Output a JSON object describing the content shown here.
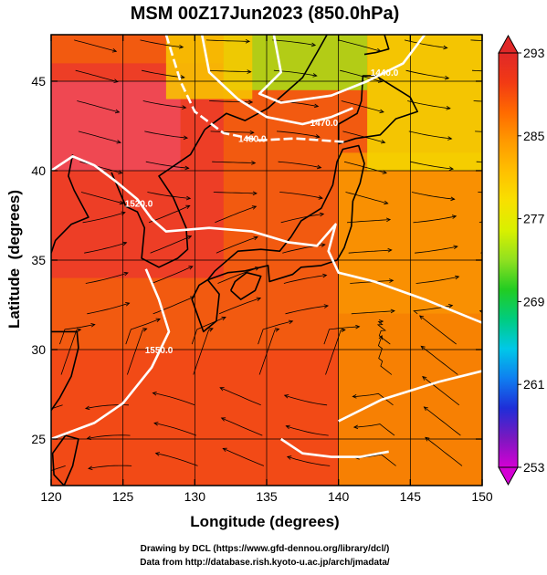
{
  "chart_data": {
    "type": "heatmap",
    "title": "MSM 00Z17Jun2023 (850.0hPa)",
    "xlabel": "Longitude (degrees)",
    "ylabel": "Latitude  (degrees)",
    "xlim": [
      120,
      150
    ],
    "ylim": [
      22.4,
      47.6
    ],
    "x_ticks": [
      120,
      125,
      130,
      135,
      140,
      145,
      150
    ],
    "y_ticks": [
      25,
      30,
      35,
      40,
      45
    ],
    "grid": true,
    "colorbar": {
      "placement": "right",
      "range": [
        253,
        293
      ],
      "ticks": [
        "293",
        "285",
        "277",
        "269",
        "261",
        "253"
      ],
      "colors": [
        "#d400d4",
        "#7a18c0",
        "#1e2ed8",
        "#0f7ef0",
        "#00c8e8",
        "#00cc80",
        "#22cc22",
        "#90e020",
        "#d8f000",
        "#f8e000",
        "#ffc000",
        "#ff9a00",
        "#ff6a00",
        "#f23a14",
        "#e02828"
      ]
    },
    "contours": [
      {
        "label": "1440.0",
        "value": 1440.0
      },
      {
        "label": "1470.0",
        "value": 1470.0
      },
      {
        "label": "1480.0",
        "value": 1480.0
      },
      {
        "label": "1520.0",
        "value": 1520.0
      },
      {
        "label": "1550.0",
        "value": 1550.0
      }
    ],
    "overlays": [
      "streamlines",
      "coastlines",
      "height-contours"
    ]
  },
  "footer": {
    "line1": "Drawing by DCL (https://www.gfd-dennou.org/library/dcl/)",
    "line2": "Data from http://database.rish.kyoto-u.ac.jp/arch/jmadata/"
  }
}
